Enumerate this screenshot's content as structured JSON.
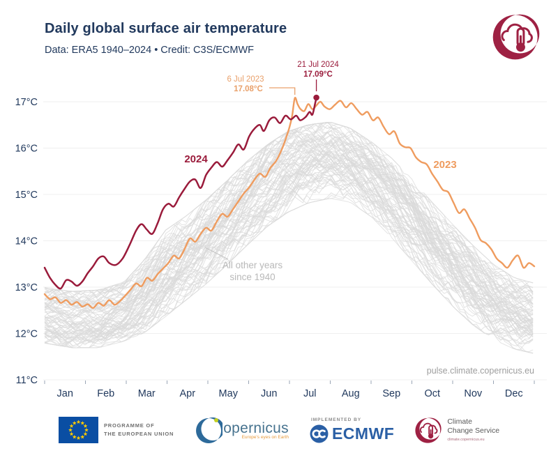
{
  "header": {
    "title": "Daily global surface air temperature",
    "subtitle": "Data: ERA5 1940–2024 • Credit: C3S/ECMWF"
  },
  "watermark": "pulse.climate.copernicus.eu",
  "colors": {
    "navy": "#21395d",
    "red_2024": "#9a1b3b",
    "orange_2023": "#ef9c5f",
    "orange_text": "#e9a06a",
    "gray_line": "#d9d9d9",
    "grid": "#efefef",
    "crimson_logo": "#9e2143",
    "watermark_gray": "#9e9e9e"
  },
  "chart_data": {
    "type": "line",
    "title": "Daily global surface air temperature",
    "xlabel": "",
    "ylabel": "°C",
    "ylim": [
      11,
      17
    ],
    "grid": "horizontal",
    "y_ticks": [
      {
        "value": 17,
        "label": "17°C"
      },
      {
        "value": 16,
        "label": "16°C"
      },
      {
        "value": 15,
        "label": "15°C"
      },
      {
        "value": 14,
        "label": "14°C"
      },
      {
        "value": 13,
        "label": "13°C"
      },
      {
        "value": 12,
        "label": "12°C"
      },
      {
        "value": 11,
        "label": "11°C"
      }
    ],
    "x_tick_labels": [
      "Jan",
      "Feb",
      "Mar",
      "Apr",
      "May",
      "Jun",
      "Jul",
      "Aug",
      "Sep",
      "Oct",
      "Nov",
      "Dec"
    ],
    "annotations": {
      "peak_2024": {
        "date": "21 Jul 2024",
        "temp": "17.09°C",
        "day": 202,
        "value": 17.09
      },
      "peak_2023": {
        "date": "6 Jul 2023",
        "temp": "17.08°C",
        "day": 186,
        "value": 17.08
      },
      "other_years": {
        "line1": "All other years",
        "line2": "since 1940"
      }
    },
    "series": [
      {
        "name": "2024",
        "color": "#9a1b3b",
        "ends_at_day": 202,
        "points": [
          [
            0,
            13.42
          ],
          [
            4,
            13.2
          ],
          [
            8,
            13.05
          ],
          [
            12,
            12.97
          ],
          [
            16,
            13.15
          ],
          [
            20,
            13.12
          ],
          [
            24,
            13.03
          ],
          [
            28,
            13.12
          ],
          [
            32,
            13.3
          ],
          [
            36,
            13.45
          ],
          [
            40,
            13.62
          ],
          [
            44,
            13.66
          ],
          [
            48,
            13.52
          ],
          [
            53,
            13.48
          ],
          [
            58,
            13.62
          ],
          [
            63,
            13.9
          ],
          [
            68,
            14.22
          ],
          [
            72,
            14.36
          ],
          [
            76,
            14.24
          ],
          [
            80,
            14.15
          ],
          [
            84,
            14.38
          ],
          [
            88,
            14.68
          ],
          [
            92,
            14.8
          ],
          [
            96,
            14.74
          ],
          [
            100,
            14.94
          ],
          [
            104,
            15.12
          ],
          [
            108,
            15.28
          ],
          [
            112,
            15.32
          ],
          [
            116,
            15.14
          ],
          [
            120,
            15.42
          ],
          [
            124,
            15.58
          ],
          [
            128,
            15.7
          ],
          [
            132,
            15.6
          ],
          [
            136,
            15.74
          ],
          [
            140,
            15.9
          ],
          [
            144,
            16.08
          ],
          [
            148,
            15.97
          ],
          [
            152,
            16.25
          ],
          [
            156,
            16.42
          ],
          [
            160,
            16.5
          ],
          [
            163,
            16.37
          ],
          [
            167,
            16.6
          ],
          [
            171,
            16.66
          ],
          [
            175,
            16.54
          ],
          [
            179,
            16.7
          ],
          [
            183,
            16.62
          ],
          [
            187,
            16.7
          ],
          [
            190,
            16.6
          ],
          [
            194,
            16.67
          ],
          [
            197,
            16.78
          ],
          [
            199,
            16.72
          ],
          [
            201,
            16.95
          ],
          [
            202,
            17.09
          ]
        ]
      },
      {
        "name": "2023",
        "color": "#ef9c5f",
        "ends_at_day": 364,
        "points": [
          [
            0,
            12.85
          ],
          [
            4,
            12.74
          ],
          [
            8,
            12.78
          ],
          [
            12,
            12.66
          ],
          [
            16,
            12.72
          ],
          [
            20,
            12.62
          ],
          [
            24,
            12.68
          ],
          [
            28,
            12.58
          ],
          [
            32,
            12.63
          ],
          [
            36,
            12.55
          ],
          [
            40,
            12.66
          ],
          [
            44,
            12.6
          ],
          [
            48,
            12.72
          ],
          [
            52,
            12.62
          ],
          [
            56,
            12.7
          ],
          [
            60,
            12.82
          ],
          [
            64,
            12.95
          ],
          [
            68,
            13.08
          ],
          [
            72,
            13.02
          ],
          [
            76,
            13.2
          ],
          [
            80,
            13.14
          ],
          [
            84,
            13.28
          ],
          [
            88,
            13.4
          ],
          [
            92,
            13.52
          ],
          [
            96,
            13.68
          ],
          [
            100,
            13.62
          ],
          [
            104,
            13.82
          ],
          [
            108,
            14.05
          ],
          [
            112,
            13.98
          ],
          [
            116,
            14.15
          ],
          [
            120,
            14.28
          ],
          [
            124,
            14.22
          ],
          [
            128,
            14.42
          ],
          [
            132,
            14.58
          ],
          [
            136,
            14.52
          ],
          [
            140,
            14.68
          ],
          [
            144,
            14.85
          ],
          [
            148,
            15.02
          ],
          [
            152,
            15.15
          ],
          [
            156,
            15.32
          ],
          [
            160,
            15.45
          ],
          [
            164,
            15.38
          ],
          [
            168,
            15.58
          ],
          [
            172,
            15.72
          ],
          [
            176,
            15.95
          ],
          [
            179,
            16.18
          ],
          [
            182,
            16.45
          ],
          [
            184,
            16.7
          ],
          [
            186,
            17.08
          ],
          [
            188,
            16.95
          ],
          [
            190,
            16.85
          ],
          [
            193,
            16.8
          ],
          [
            196,
            16.95
          ],
          [
            199,
            16.84
          ],
          [
            202,
            16.92
          ],
          [
            205,
            17.0
          ],
          [
            208,
            16.9
          ],
          [
            212,
            16.84
          ],
          [
            216,
            16.94
          ],
          [
            220,
            17.02
          ],
          [
            224,
            16.88
          ],
          [
            228,
            16.97
          ],
          [
            232,
            16.84
          ],
          [
            236,
            16.72
          ],
          [
            240,
            16.78
          ],
          [
            244,
            16.6
          ],
          [
            248,
            16.66
          ],
          [
            252,
            16.46
          ],
          [
            256,
            16.3
          ],
          [
            260,
            16.36
          ],
          [
            264,
            16.1
          ],
          [
            268,
            16.02
          ],
          [
            272,
            16.0
          ],
          [
            276,
            15.8
          ],
          [
            280,
            15.7
          ],
          [
            284,
            15.65
          ],
          [
            288,
            15.45
          ],
          [
            292,
            15.28
          ],
          [
            296,
            15.1
          ],
          [
            300,
            15.05
          ],
          [
            304,
            14.82
          ],
          [
            308,
            14.6
          ],
          [
            312,
            14.68
          ],
          [
            316,
            14.48
          ],
          [
            320,
            14.28
          ],
          [
            324,
            14.02
          ],
          [
            328,
            13.95
          ],
          [
            332,
            13.82
          ],
          [
            336,
            13.62
          ],
          [
            340,
            13.52
          ],
          [
            344,
            13.42
          ],
          [
            348,
            13.58
          ],
          [
            352,
            13.68
          ],
          [
            356,
            13.42
          ],
          [
            360,
            13.52
          ],
          [
            364,
            13.45
          ]
        ]
      },
      {
        "name": "All other years since 1940",
        "color": "#d9d9d9",
        "count": 83,
        "envelope": {
          "days": [
            0,
            20,
            40,
            59,
            74,
            90,
            105,
            120,
            135,
            151,
            166,
            181,
            196,
            212,
            227,
            243,
            258,
            273,
            288,
            304,
            319,
            334,
            349,
            364
          ],
          "min": [
            11.78,
            11.68,
            11.68,
            11.82,
            12.0,
            12.35,
            12.7,
            13.05,
            13.45,
            13.9,
            14.3,
            14.6,
            14.8,
            14.9,
            14.82,
            14.5,
            14.05,
            13.55,
            13.05,
            12.55,
            12.15,
            11.85,
            11.65,
            11.55
          ],
          "max": [
            13.0,
            12.92,
            12.95,
            13.12,
            13.6,
            14.25,
            14.55,
            14.9,
            15.3,
            15.75,
            16.1,
            16.38,
            16.52,
            16.58,
            16.45,
            16.15,
            15.8,
            15.35,
            14.85,
            14.35,
            13.9,
            13.5,
            13.22,
            13.1
          ]
        }
      }
    ]
  },
  "footer": {
    "eu": {
      "line1": "PROGRAMME OF",
      "line2": "THE EUROPEAN UNION"
    },
    "copernicus": {
      "name": "Copernicus",
      "tagline": "Europe's eyes on Earth"
    },
    "ecmwf": {
      "implemented_by": "IMPLEMENTED BY",
      "name": "ECMWF"
    },
    "c3s": {
      "line1": "Climate",
      "line2": "Change Service",
      "url": "climate.copernicus.eu"
    }
  }
}
